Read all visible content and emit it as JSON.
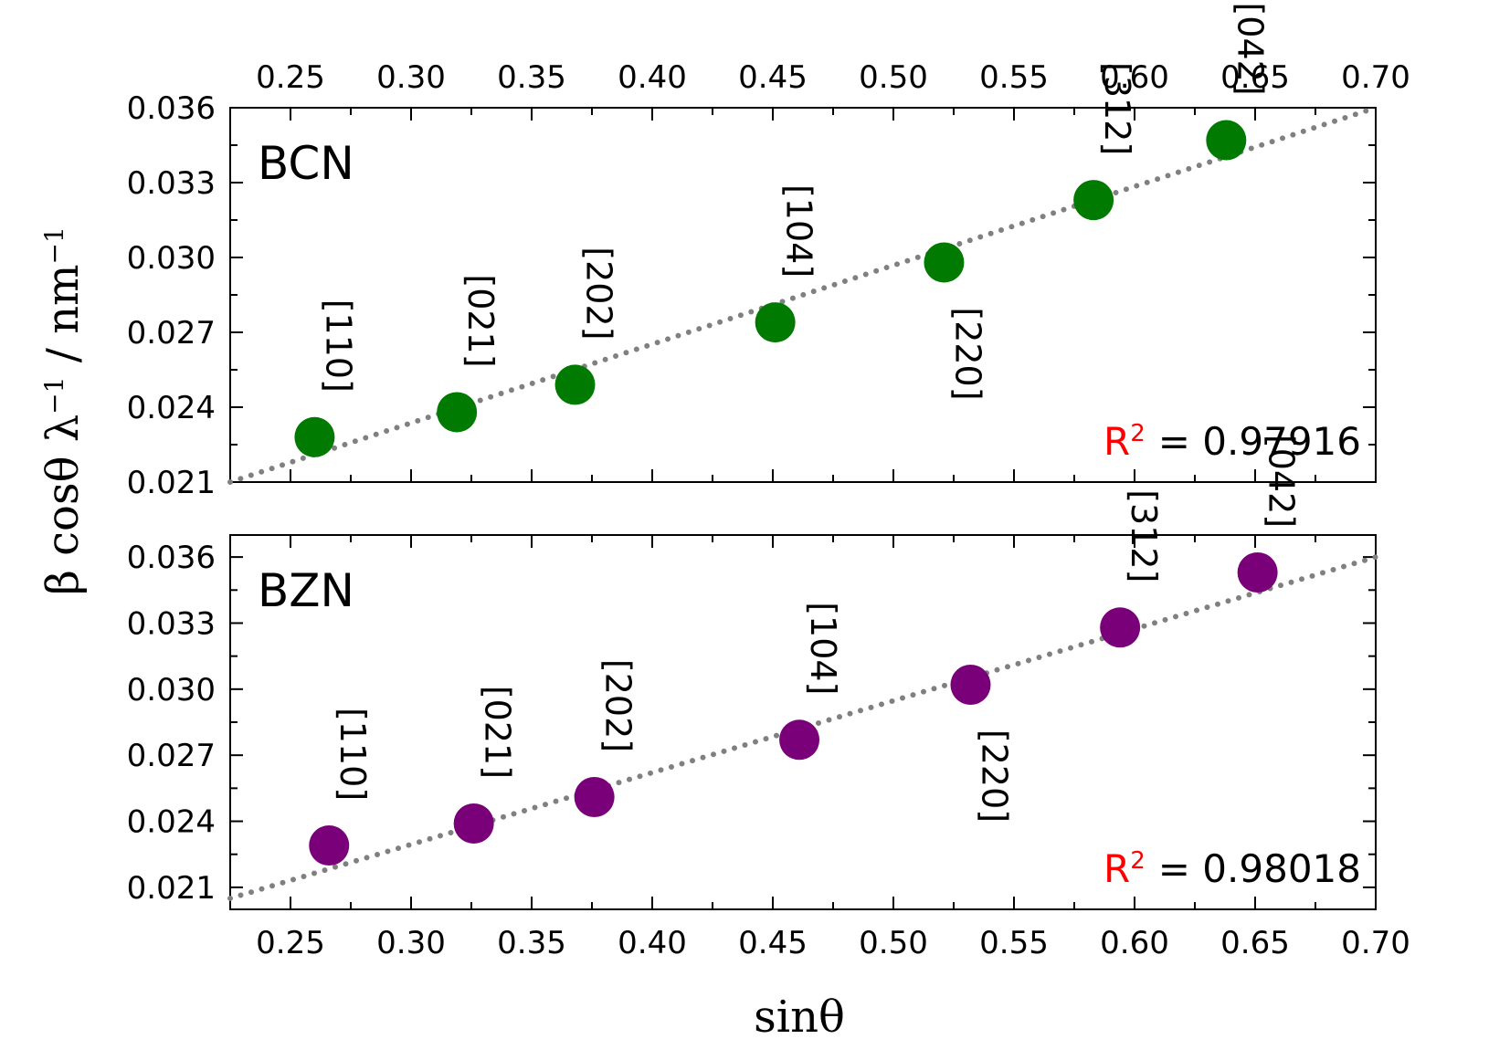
{
  "chart_data": [
    {
      "type": "scatter",
      "panel_label": "BCN",
      "color": "#007a00",
      "x": [
        0.26,
        0.319,
        0.368,
        0.451,
        0.521,
        0.583,
        0.638
      ],
      "y": [
        0.0228,
        0.0238,
        0.0249,
        0.0274,
        0.0298,
        0.0323,
        0.0347
      ],
      "labels": [
        "[110]",
        "[021]",
        "[202]",
        "[104]",
        "[220]",
        "[312]",
        "[042]"
      ],
      "label_placement": [
        "above",
        "above",
        "above",
        "above",
        "below",
        "above",
        "above"
      ],
      "fit": {
        "style": "dotted",
        "color": "#808080",
        "x": [
          0.225,
          0.7
        ],
        "y": [
          0.021,
          0.036
        ]
      },
      "r2_label": "R",
      "r2_exp": "2",
      "r2_value": "= 0.97916",
      "xlim": [
        0.225,
        0.7
      ],
      "ylim": [
        0.021,
        0.036
      ],
      "yticks": [
        "0.021",
        "0.024",
        "0.027",
        "0.030",
        "0.033",
        "0.036"
      ],
      "xticks": [
        "0.25",
        "0.30",
        "0.35",
        "0.40",
        "0.45",
        "0.50",
        "0.55",
        "0.60",
        "0.65",
        "0.70"
      ]
    },
    {
      "type": "scatter",
      "panel_label": "BZN",
      "color": "#7a007a",
      "x": [
        0.266,
        0.326,
        0.376,
        0.461,
        0.532,
        0.594,
        0.651
      ],
      "y": [
        0.0229,
        0.0239,
        0.0251,
        0.0277,
        0.0302,
        0.0328,
        0.0353
      ],
      "labels": [
        "[110]",
        "[021]",
        "[202]",
        "[104]",
        "[220]",
        "[312]",
        "[042]"
      ],
      "label_placement": [
        "above",
        "above",
        "above",
        "above",
        "below",
        "above",
        "above"
      ],
      "fit": {
        "style": "dotted",
        "color": "#808080",
        "x": [
          0.225,
          0.7
        ],
        "y": [
          0.0205,
          0.036
        ]
      },
      "r2_label": "R",
      "r2_exp": "2",
      "r2_value": "= 0.98018",
      "xlim": [
        0.225,
        0.7
      ],
      "ylim": [
        0.02,
        0.037
      ],
      "yticks": [
        "0.021",
        "0.024",
        "0.027",
        "0.030",
        "0.033",
        "0.036"
      ],
      "xticks": [
        "0.25",
        "0.30",
        "0.35",
        "0.40",
        "0.45",
        "0.50",
        "0.55",
        "0.60",
        "0.65",
        "0.70"
      ]
    }
  ],
  "axes": {
    "xlabel": "sinθ",
    "ylabel_main": "β cosθ λ",
    "ylabel_exp1": "−1",
    "ylabel_unit": " / nm",
    "ylabel_exp2": "−1"
  }
}
